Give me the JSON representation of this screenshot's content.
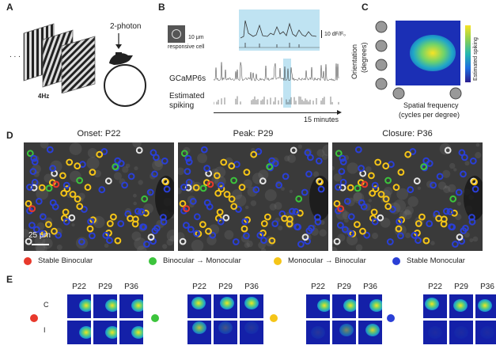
{
  "panels": {
    "a": {
      "letter": "A",
      "ellipsis": ". . .",
      "freq_label": "4Hz",
      "microscope_label": "2-photon"
    },
    "b": {
      "letter": "B",
      "scale_label": "10 μm",
      "cell_label": "responsive cell",
      "df_label": "10 dF/F₀",
      "gcamp_label": "GCaMP6s",
      "spiking_label_1": "Estimated",
      "spiking_label_2": "spiking",
      "time_label": "15 minutes"
    },
    "c": {
      "letter": "C",
      "ylabel_1": "Orientation",
      "ylabel_2": "(degrees)",
      "xlabel_1": "Spatial frequency",
      "xlabel_2": "(cycles per degree)",
      "colorbar_label": "Estimated spiking"
    },
    "d": {
      "letter": "D",
      "titles": [
        "Onset: P22",
        "Peak: P29",
        "Closure: P36"
      ],
      "scale_label": "25 μm",
      "legend": [
        {
          "label": "Stable Binocular",
          "color": "#e8392c"
        },
        {
          "label": "Binocular → Monocular",
          "color": "#3cc43c"
        },
        {
          "label": "Monocular → Binocular",
          "color": "#f5c518"
        },
        {
          "label": "Stable Monocular",
          "color": "#2a3fd6"
        }
      ]
    },
    "e": {
      "letter": "E",
      "columns": [
        "P22",
        "P29",
        "P36"
      ],
      "rows": [
        "C",
        "I"
      ],
      "groups": [
        {
          "color": "#e8392c"
        },
        {
          "color": "#3cc43c"
        },
        {
          "color": "#f5c518"
        },
        {
          "color": "#2a3fd6"
        }
      ]
    }
  }
}
